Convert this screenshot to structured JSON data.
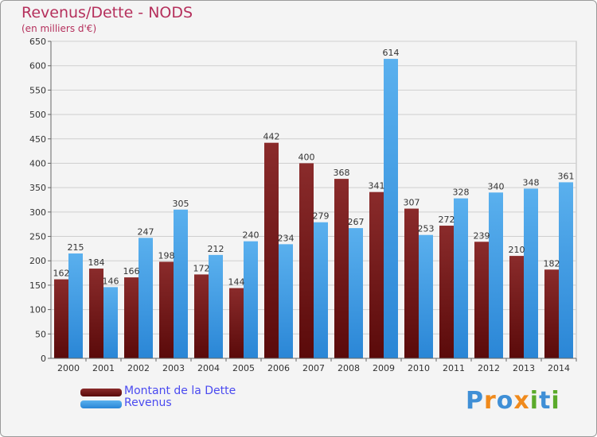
{
  "chart_data": {
    "type": "bar",
    "title": "Revenus/Dette - NODS",
    "subtitle": "(en milliers d'€)",
    "categories": [
      "2000",
      "2001",
      "2002",
      "2003",
      "2004",
      "2005",
      "2006",
      "2007",
      "2008",
      "2009",
      "2010",
      "2011",
      "2012",
      "2013",
      "2014"
    ],
    "series": [
      {
        "name": "Montant de la Dette",
        "color": "#7a1c1c",
        "values": [
          162,
          184,
          166,
          198,
          172,
          144,
          442,
          400,
          368,
          341,
          307,
          272,
          239,
          210,
          182
        ]
      },
      {
        "name": "Revenus",
        "color": "#3f9ee6",
        "values": [
          215,
          146,
          247,
          305,
          212,
          240,
          234,
          279,
          267,
          614,
          253,
          328,
          340,
          348,
          361
        ]
      }
    ],
    "ylim": [
      0,
      650
    ],
    "yticks": [
      0,
      50,
      100,
      150,
      200,
      250,
      300,
      350,
      400,
      450,
      500,
      550,
      600,
      650
    ],
    "grid": true,
    "legend_position": "bottom-left",
    "data_labels": true
  },
  "logo": {
    "letters": [
      {
        "ch": "P",
        "color": "#3f8fd6"
      },
      {
        "ch": "r",
        "color": "#f08a1c"
      },
      {
        "ch": "o",
        "color": "#3f8fd6"
      },
      {
        "ch": "x",
        "color": "#f08a1c"
      },
      {
        "ch": "i",
        "color": "#5aaa2a"
      },
      {
        "ch": "t",
        "color": "#3f8fd6"
      },
      {
        "ch": "i",
        "color": "#5aaa2a"
      }
    ]
  }
}
